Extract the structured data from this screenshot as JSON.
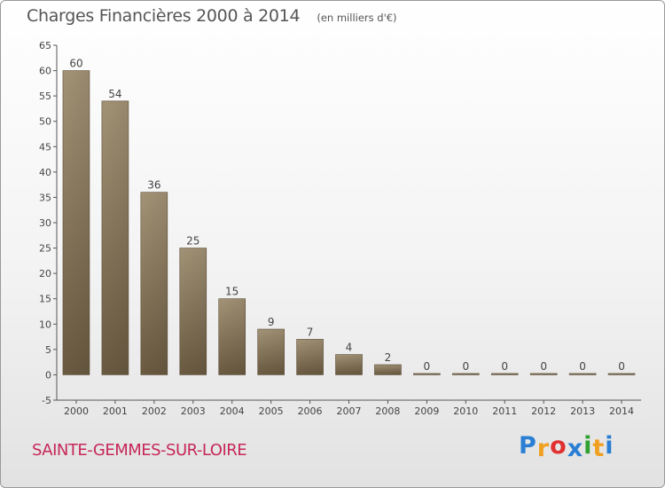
{
  "chart_data": {
    "type": "bar",
    "title": "Charges Financières 2000 à 2014",
    "subtitle": "(en milliers d'€)",
    "categories": [
      "2000",
      "2001",
      "2002",
      "2003",
      "2004",
      "2005",
      "2006",
      "2007",
      "2008",
      "2009",
      "2010",
      "2011",
      "2012",
      "2013",
      "2014"
    ],
    "values": [
      60,
      54,
      36,
      25,
      15,
      9,
      7,
      4,
      2,
      0,
      0,
      0,
      0,
      0,
      0
    ],
    "ylim": [
      -5,
      65
    ],
    "yticks": [
      -5,
      0,
      5,
      10,
      15,
      20,
      25,
      30,
      35,
      40,
      45,
      50,
      55,
      60,
      65
    ],
    "xlabel": "",
    "ylabel": "",
    "grid": false,
    "bar_color": "#8b7a5e"
  },
  "commune": "SAINTE-GEMMES-SUR-LOIRE",
  "logo": {
    "letters": [
      "P",
      "r",
      "o",
      "x",
      "i",
      "t",
      "i"
    ],
    "colors": [
      "#2a7fd4",
      "#f0a020",
      "#e03030",
      "#2a7fd4",
      "#30a030",
      "#f0a020",
      "#2a7fd4"
    ]
  }
}
